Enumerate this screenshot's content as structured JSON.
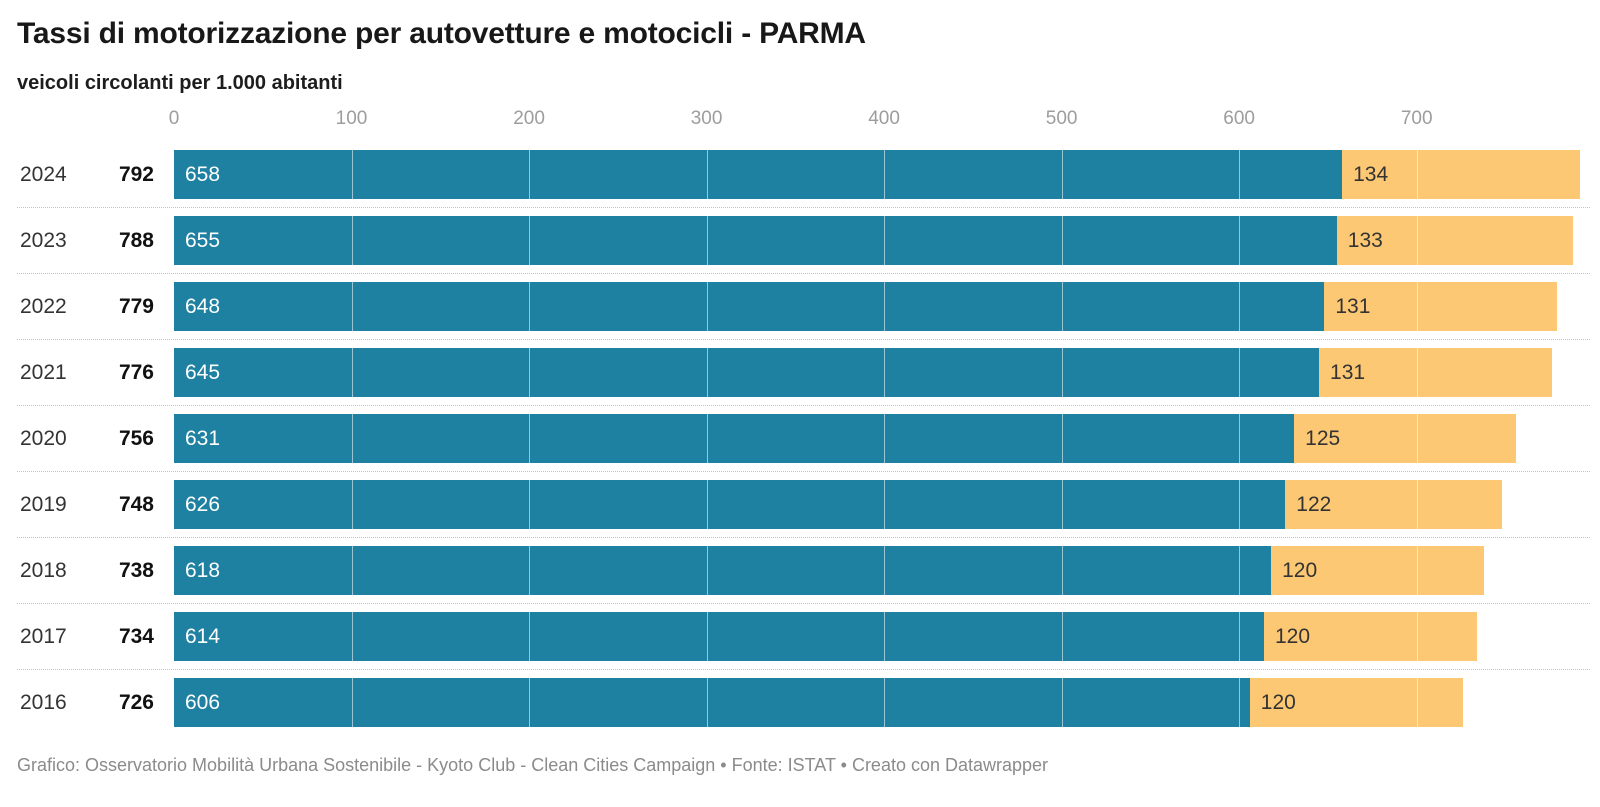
{
  "header": {
    "title": "Tassi di motorizzazione per autovetture e motocicli - PARMA",
    "subtitle": "veicoli circolanti per 1.000 abitanti"
  },
  "footer": {
    "credit": "Grafico: Osservatorio Mobilità Urbana Sostenibile - Kyoto Club - Clean Cities Campaign • Fonte: ISTAT • Creato con Datawrapper"
  },
  "colors": {
    "cars": "#1f81a1",
    "motorcycles": "#fcc873",
    "bar_label_on_cars": "#ffffff",
    "bar_label_on_motorcycles": "#333333",
    "axis_tick": "#9d9d9d",
    "separator": "#c3c3c3",
    "credit_text": "#8b8b8b"
  },
  "chart_data": {
    "type": "bar",
    "orientation": "horizontal",
    "stacked": true,
    "title": "Tassi di motorizzazione per autovetture e motocicli - PARMA",
    "subtitle": "veicoli circolanti per 1.000 abitanti",
    "xlabel": "",
    "ylabel": "",
    "x_ticks": [
      0,
      100,
      200,
      300,
      400,
      500,
      600,
      700
    ],
    "x_max": 792,
    "grid": "white-lines-over-bars",
    "legend": "none",
    "categories": [
      "2024",
      "2023",
      "2022",
      "2021",
      "2020",
      "2019",
      "2018",
      "2017",
      "2016"
    ],
    "totals": [
      792,
      788,
      779,
      776,
      756,
      748,
      738,
      734,
      726
    ],
    "series": [
      {
        "name": "autovetture",
        "color": "#1f81a1",
        "values": [
          658,
          655,
          648,
          645,
          631,
          626,
          618,
          614,
          606
        ]
      },
      {
        "name": "motocicli",
        "color": "#fcc873",
        "values": [
          134,
          133,
          131,
          131,
          125,
          122,
          120,
          120,
          120
        ]
      }
    ]
  }
}
